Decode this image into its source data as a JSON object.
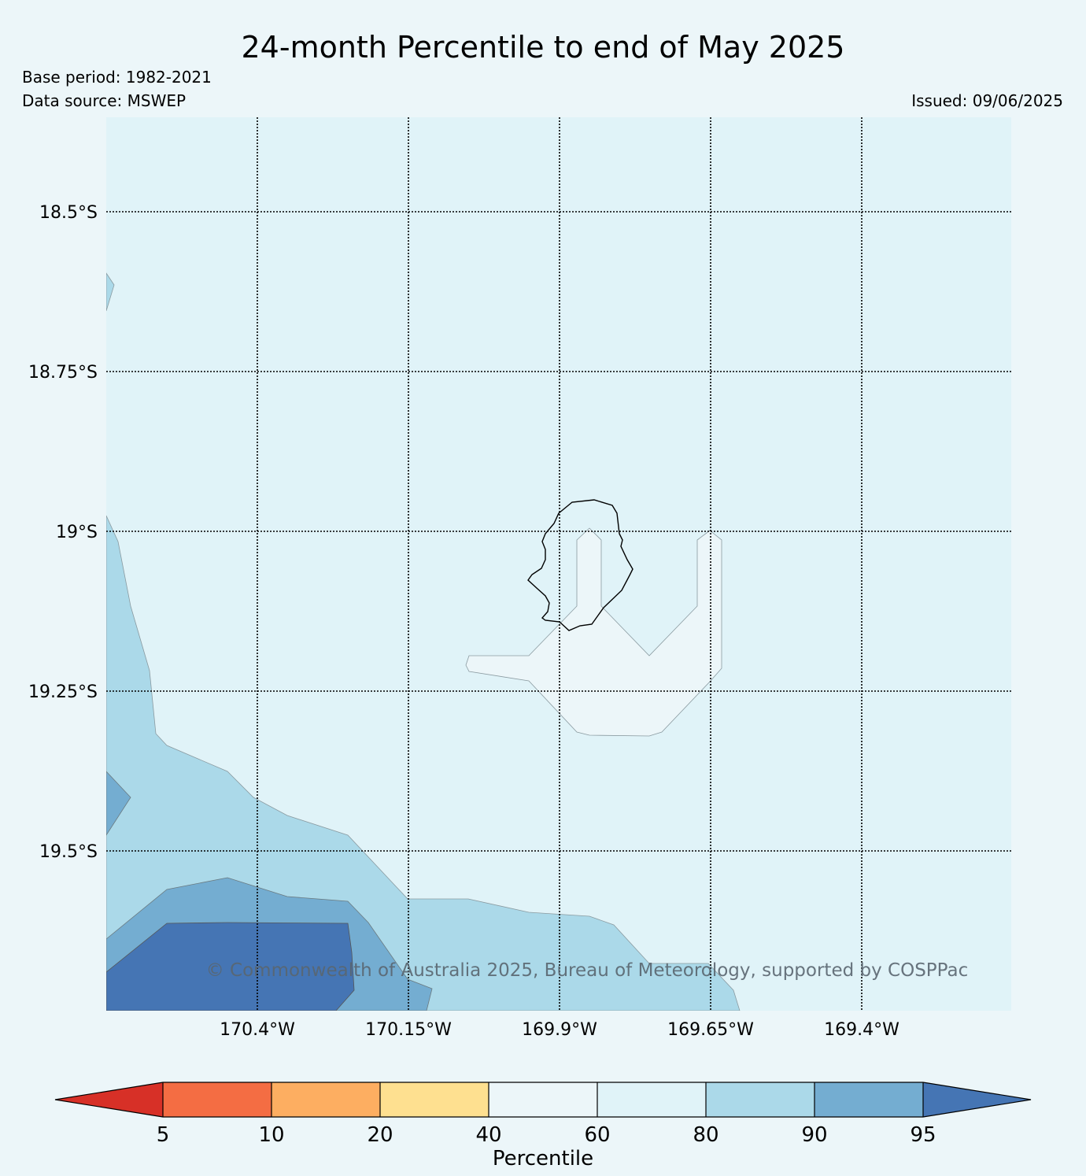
{
  "header": {
    "title": "24-month Percentile to end of May 2025",
    "base_period": "Base period: 1982-2021",
    "data_source": "Data source: MSWEP",
    "issued": "Issued: 09/06/2025"
  },
  "map": {
    "lat_labels": [
      "18.5°S",
      "18.75°S",
      "19°S",
      "19.25°S",
      "19.5°S"
    ],
    "lon_labels": [
      "170.4°W",
      "170.15°W",
      "169.9°W",
      "169.65°W",
      "169.4°W"
    ],
    "credit": "© Commonwealth of Australia 2025, Bureau of Meteorology, supported by COSPPac",
    "colors": {
      "ocean_60_80": "#e0f3f8",
      "band_40_60": "#ecf6f9",
      "band_80_90": "#abd9e9",
      "band_90_95": "#74add1",
      "band_95_plus": "#4575b4"
    }
  },
  "colorbar": {
    "label": "Percentile",
    "ticks": [
      "5",
      "10",
      "20",
      "40",
      "60",
      "80",
      "90",
      "95"
    ],
    "colors": [
      "#d73027",
      "#f46d43",
      "#fdae61",
      "#fee090",
      "#ecf6f9",
      "#e0f3f8",
      "#abd9e9",
      "#74add1",
      "#4575b4"
    ]
  }
}
